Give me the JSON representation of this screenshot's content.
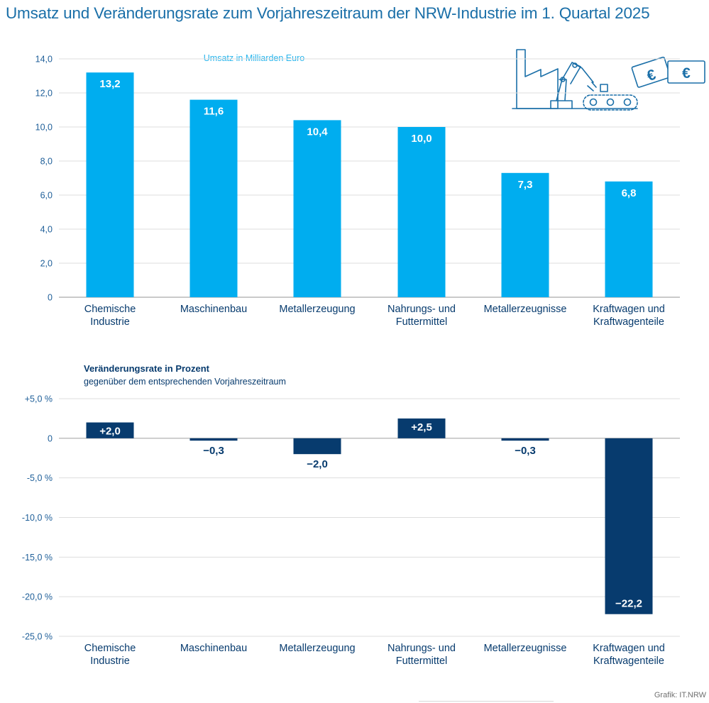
{
  "title": "Umsatz und Veränderungsrate zum Vorjahreszeitraum der NRW-Industrie im 1. Quartal 2025",
  "credit": "Grafik: IT.NRW",
  "colors": {
    "title": "#1a6fa8",
    "revenue_bar": "#00adef",
    "revenue_caption": "#29b5ec",
    "change_bar": "#073b6e",
    "axis_text": "#1f5f99",
    "gridline": "#dddddd",
    "icon_stroke": "#1a6fa8"
  },
  "icon": {
    "name": "factory-robot-euro-icon",
    "euro_symbol": "€"
  },
  "chart_data": [
    {
      "type": "bar",
      "caption": "Umsatz in Milliarden Euro",
      "categories": [
        [
          "Chemische",
          "Industrie"
        ],
        [
          "Maschinenbau"
        ],
        [
          "Metallerzeugung"
        ],
        [
          "Nahrungs- und",
          "Futtermittel"
        ],
        [
          "Metallerzeugnisse"
        ],
        [
          "Kraftwagen und",
          "Kraftwagenteile"
        ]
      ],
      "values": [
        13.2,
        11.6,
        10.4,
        10.0,
        7.3,
        6.8
      ],
      "value_labels": [
        "13,2",
        "11,6",
        "10,4",
        "10,0",
        "7,3",
        "6,8"
      ],
      "ylim": [
        0,
        14
      ],
      "yticks": [
        0,
        2,
        4,
        6,
        8,
        10,
        12,
        14
      ],
      "ytick_labels": [
        "0",
        "2,0",
        "4,0",
        "6,0",
        "8,0",
        "10,0",
        "12,0",
        "14,0"
      ],
      "grid": true
    },
    {
      "type": "bar",
      "caption": "Veränderungsrate in Prozent",
      "subcaption": "gegenüber dem entsprechenden Vorjahreszeitraum",
      "categories": [
        [
          "Chemische",
          "Industrie"
        ],
        [
          "Maschinenbau"
        ],
        [
          "Metallerzeugung"
        ],
        [
          "Nahrungs- und",
          "Futtermittel"
        ],
        [
          "Metallerzeugnisse"
        ],
        [
          "Kraftwagen und",
          "Kraftwagenteile"
        ]
      ],
      "values": [
        2.0,
        -0.3,
        -2.0,
        2.5,
        -0.3,
        -22.2
      ],
      "value_labels": [
        "+2,0",
        "−0,3",
        "−2,0",
        "+2,5",
        "−0,3",
        "−22,2"
      ],
      "ylim": [
        -25,
        5
      ],
      "yticks": [
        5,
        0,
        -5,
        -10,
        -15,
        -20,
        -25
      ],
      "ytick_labels": [
        "+5,0 %",
        "0",
        "-5,0 %",
        "-10,0 %",
        "-15,0 %",
        "-20,0 %",
        "-25,0 %"
      ],
      "grid": true
    }
  ]
}
